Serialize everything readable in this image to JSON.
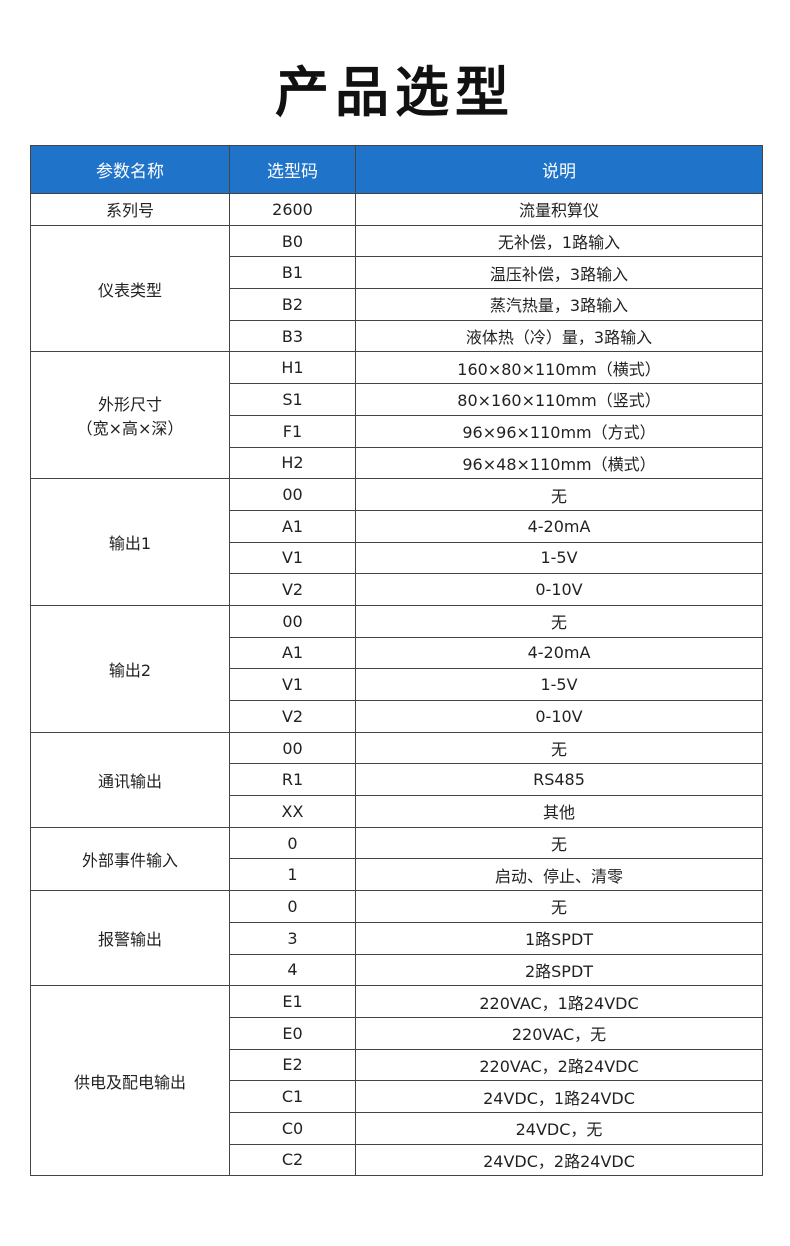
{
  "title": "产品选型",
  "headers": [
    "参数名称",
    "选型码",
    "说明"
  ],
  "colors": {
    "header_bg": "#1f73c8"
  },
  "groups": [
    {
      "name": "系列号",
      "rows": [
        [
          "2600",
          "流量积算仪"
        ]
      ]
    },
    {
      "name": "仪表类型",
      "rows": [
        [
          "B0",
          "无补偿，1路输入"
        ],
        [
          "B1",
          "温压补偿，3路输入"
        ],
        [
          "B2",
          "蒸汽热量，3路输入"
        ],
        [
          "B3",
          "液体热（冷）量，3路输入"
        ]
      ]
    },
    {
      "name": "外形尺寸\n（宽×高×深）",
      "rows": [
        [
          "H1",
          "160×80×110mm（横式）"
        ],
        [
          "S1",
          "80×160×110mm（竖式）"
        ],
        [
          "F1",
          "96×96×110mm（方式）"
        ],
        [
          "H2",
          "96×48×110mm（横式）"
        ]
      ]
    },
    {
      "name": "输出1",
      "rows": [
        [
          "00",
          "无"
        ],
        [
          "A1",
          "4-20mA"
        ],
        [
          "V1",
          "1-5V"
        ],
        [
          "V2",
          "0-10V"
        ]
      ]
    },
    {
      "name": "输出2",
      "rows": [
        [
          "00",
          "无"
        ],
        [
          "A1",
          "4-20mA"
        ],
        [
          "V1",
          "1-5V"
        ],
        [
          "V2",
          "0-10V"
        ]
      ]
    },
    {
      "name": "通讯输出",
      "rows": [
        [
          "00",
          "无"
        ],
        [
          "R1",
          "RS485"
        ],
        [
          "XX",
          "其他"
        ]
      ]
    },
    {
      "name": "外部事件输入",
      "rows": [
        [
          "0",
          "无"
        ],
        [
          "1",
          "启动、停止、清零"
        ]
      ]
    },
    {
      "name": "报警输出",
      "rows": [
        [
          "0",
          "无"
        ],
        [
          "3",
          "1路SPDT"
        ],
        [
          "4",
          "2路SPDT"
        ]
      ]
    },
    {
      "name": "供电及配电输出",
      "rows": [
        [
          "E1",
          "220VAC，1路24VDC"
        ],
        [
          "E0",
          "220VAC，无"
        ],
        [
          "E2",
          "220VAC，2路24VDC"
        ],
        [
          "C1",
          "24VDC，1路24VDC"
        ],
        [
          "C0",
          "24VDC，无"
        ],
        [
          "C2",
          "24VDC，2路24VDC"
        ]
      ]
    }
  ]
}
